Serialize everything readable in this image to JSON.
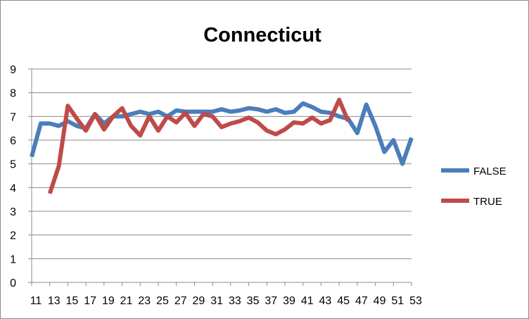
{
  "chart_data": {
    "type": "line",
    "title": "Connecticut",
    "xlabel": "",
    "ylabel": "",
    "x": [
      11,
      12,
      13,
      14,
      15,
      16,
      17,
      18,
      19,
      20,
      21,
      22,
      23,
      24,
      25,
      26,
      27,
      28,
      29,
      30,
      31,
      32,
      33,
      34,
      35,
      36,
      37,
      38,
      39,
      40,
      41,
      42,
      43,
      44,
      45,
      46,
      47,
      48,
      49,
      50,
      51,
      52,
      53
    ],
    "x_tick_labels": [
      "11",
      "13",
      "15",
      "17",
      "19",
      "21",
      "23",
      "25",
      "27",
      "29",
      "31",
      "33",
      "35",
      "37",
      "39",
      "41",
      "43",
      "45",
      "47",
      "49",
      "51",
      "53"
    ],
    "ylim": [
      0,
      9
    ],
    "y_ticks": [
      0,
      1,
      2,
      3,
      4,
      5,
      6,
      7,
      8,
      9
    ],
    "grid": "horizontal",
    "legend_position": "right",
    "series": [
      {
        "name": "FALSE",
        "color": "#4a7ebb",
        "values": [
          5.3,
          6.7,
          6.7,
          6.6,
          6.8,
          6.6,
          6.5,
          7.1,
          6.7,
          7.0,
          7.0,
          7.1,
          7.2,
          7.1,
          7.2,
          7.0,
          7.25,
          7.2,
          7.2,
          7.2,
          7.2,
          7.3,
          7.2,
          7.25,
          7.35,
          7.3,
          7.2,
          7.3,
          7.15,
          7.2,
          7.55,
          7.4,
          7.2,
          7.15,
          7.0,
          6.9,
          6.3,
          7.5,
          6.6,
          5.5,
          6.0,
          5.0,
          6.1
        ]
      },
      {
        "name": "TRUE",
        "color": "#be4b48",
        "values": [
          null,
          null,
          3.75,
          4.9,
          7.45,
          6.9,
          6.4,
          7.1,
          6.45,
          7.0,
          7.35,
          6.6,
          6.2,
          7.0,
          6.4,
          7.0,
          6.75,
          7.15,
          6.6,
          7.1,
          7.0,
          6.55,
          6.7,
          6.8,
          6.95,
          6.75,
          6.4,
          6.25,
          6.45,
          6.75,
          6.7,
          6.95,
          6.7,
          6.85,
          7.7,
          6.8,
          null,
          null,
          null,
          null,
          null,
          null,
          null
        ]
      }
    ]
  }
}
